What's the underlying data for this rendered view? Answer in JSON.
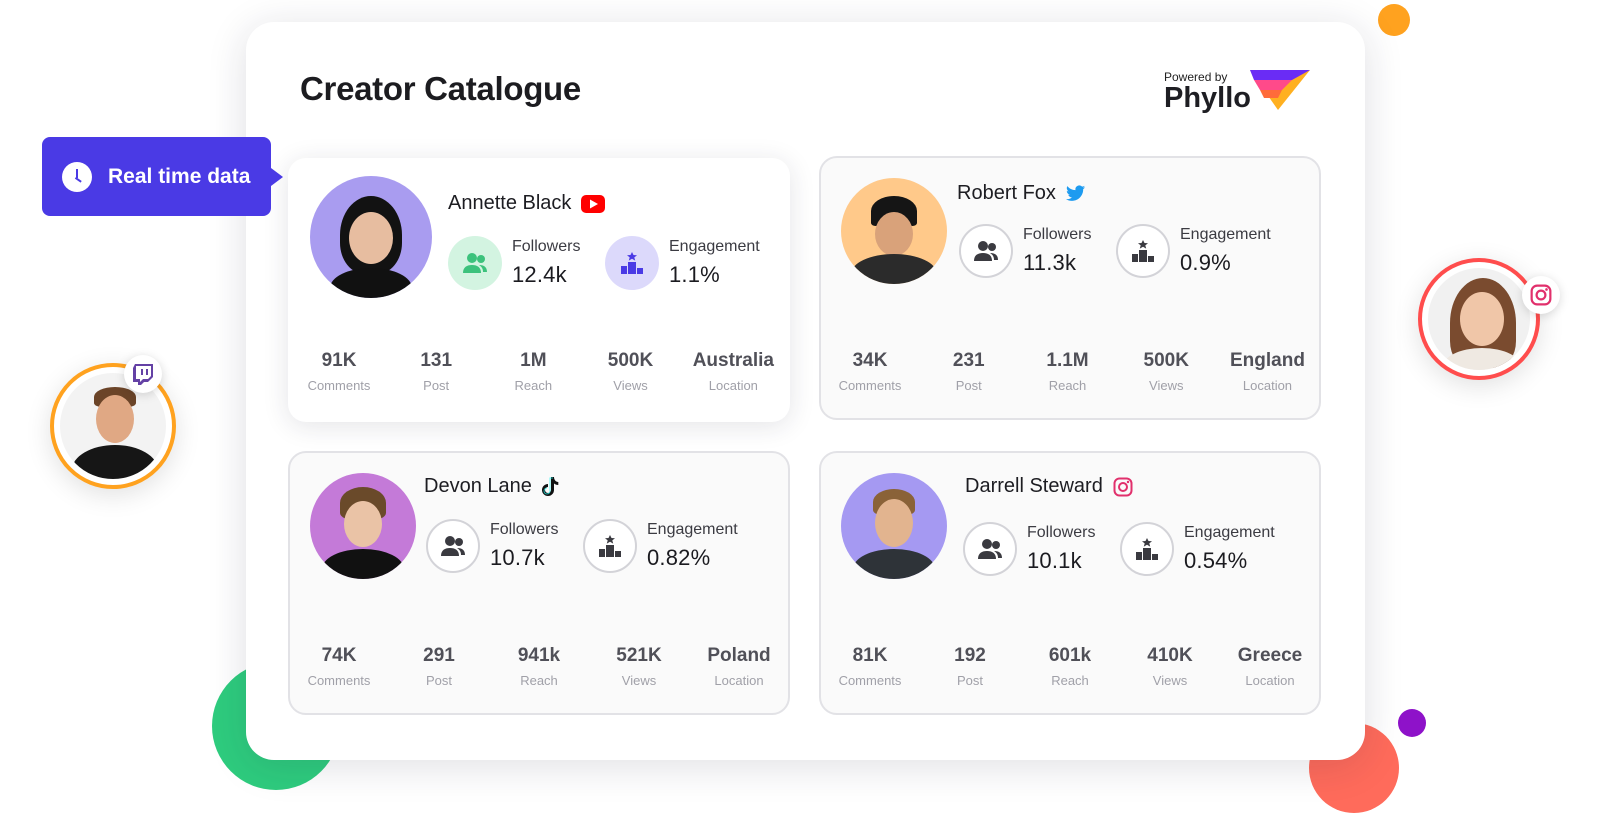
{
  "header": {
    "title": "Creator Catalogue",
    "powered_by": "Powered by",
    "brand": "Phyllo"
  },
  "badge": {
    "label": "Real time data"
  },
  "labels": {
    "followers": "Followers",
    "engagement": "Engagement",
    "comments": "Comments",
    "post": "Post",
    "reach": "Reach",
    "views": "Views",
    "location": "Location"
  },
  "creators": [
    {
      "name": "Annette Black",
      "platform": "youtube-icon",
      "followers": "12.4k",
      "engagement": "1.1%",
      "comments": "91K",
      "post": "131",
      "reach": "1M",
      "views": "500K",
      "location": "Australia"
    },
    {
      "name": "Robert Fox",
      "platform": "twitter-icon",
      "followers": "11.3k",
      "engagement": "0.9%",
      "comments": "34K",
      "post": "231",
      "reach": "1.1M",
      "views": "500K",
      "location": "England"
    },
    {
      "name": "Devon Lane",
      "platform": "tiktok-icon",
      "followers": "10.7k",
      "engagement": "0.82%",
      "comments": "74K",
      "post": "291",
      "reach": "941k",
      "views": "521K",
      "location": "Poland"
    },
    {
      "name": "Darrell Steward",
      "platform": "instagram-icon",
      "followers": "10.1k",
      "engagement": "0.54%",
      "comments": "81K",
      "post": "192",
      "reach": "601k",
      "views": "410K",
      "location": "Greece"
    }
  ],
  "colors": {
    "accent": "#4a3ae5",
    "youtube": "#ff0000",
    "twitter": "#1d9bf0",
    "instagram": "#e1306c",
    "twitch": "#6441a5"
  }
}
